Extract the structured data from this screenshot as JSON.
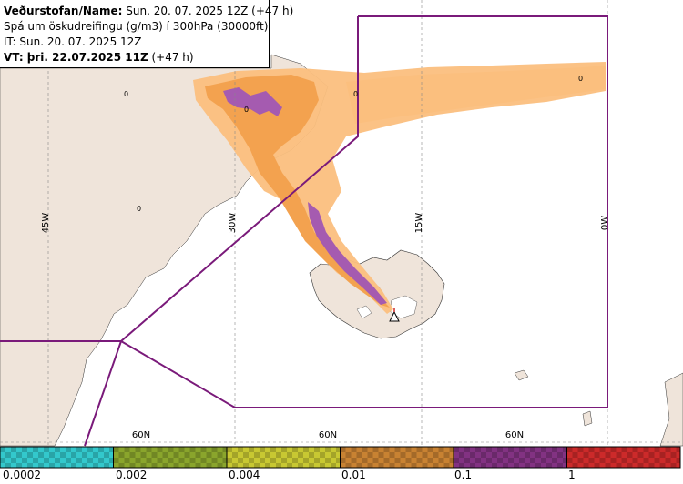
{
  "header": {
    "line1_label": "Veðurstofan/Name:",
    "line1_value": "Sun. 20. 07. 2025 12Z (+47 h)",
    "line2": "Spá um öskudreifingu (g/m3) í 300hPa (30000ft)",
    "line3": "IT: Sun. 20. 07. 2025 12Z",
    "line4_label": "VT: þri. 22.07.2025 11Z",
    "line4_value": "(+47 h)"
  },
  "gridlines": {
    "longitude_labels": [
      "45W",
      "30W",
      "15W",
      "0W"
    ],
    "latitude_labels": [
      "60N",
      "60N",
      "60N"
    ]
  },
  "contour_labels": [
    "0",
    "0",
    "0",
    "0",
    "0"
  ],
  "legend": {
    "values": [
      "0.0002",
      "0.002",
      "0.004",
      "0.01",
      "0.1",
      "1"
    ],
    "colors": [
      "#33c8cc",
      "#8aa52c",
      "#c8c832",
      "#c88232",
      "#823282",
      "#cc2a2a"
    ]
  },
  "colors": {
    "land": "#efe4da",
    "ocean": "#ffffff",
    "ash_light": "#fbbf7e",
    "ash_mid": "#f3a24f",
    "ash_high": "#a55bb0",
    "boundary": "#7a1a7a"
  }
}
